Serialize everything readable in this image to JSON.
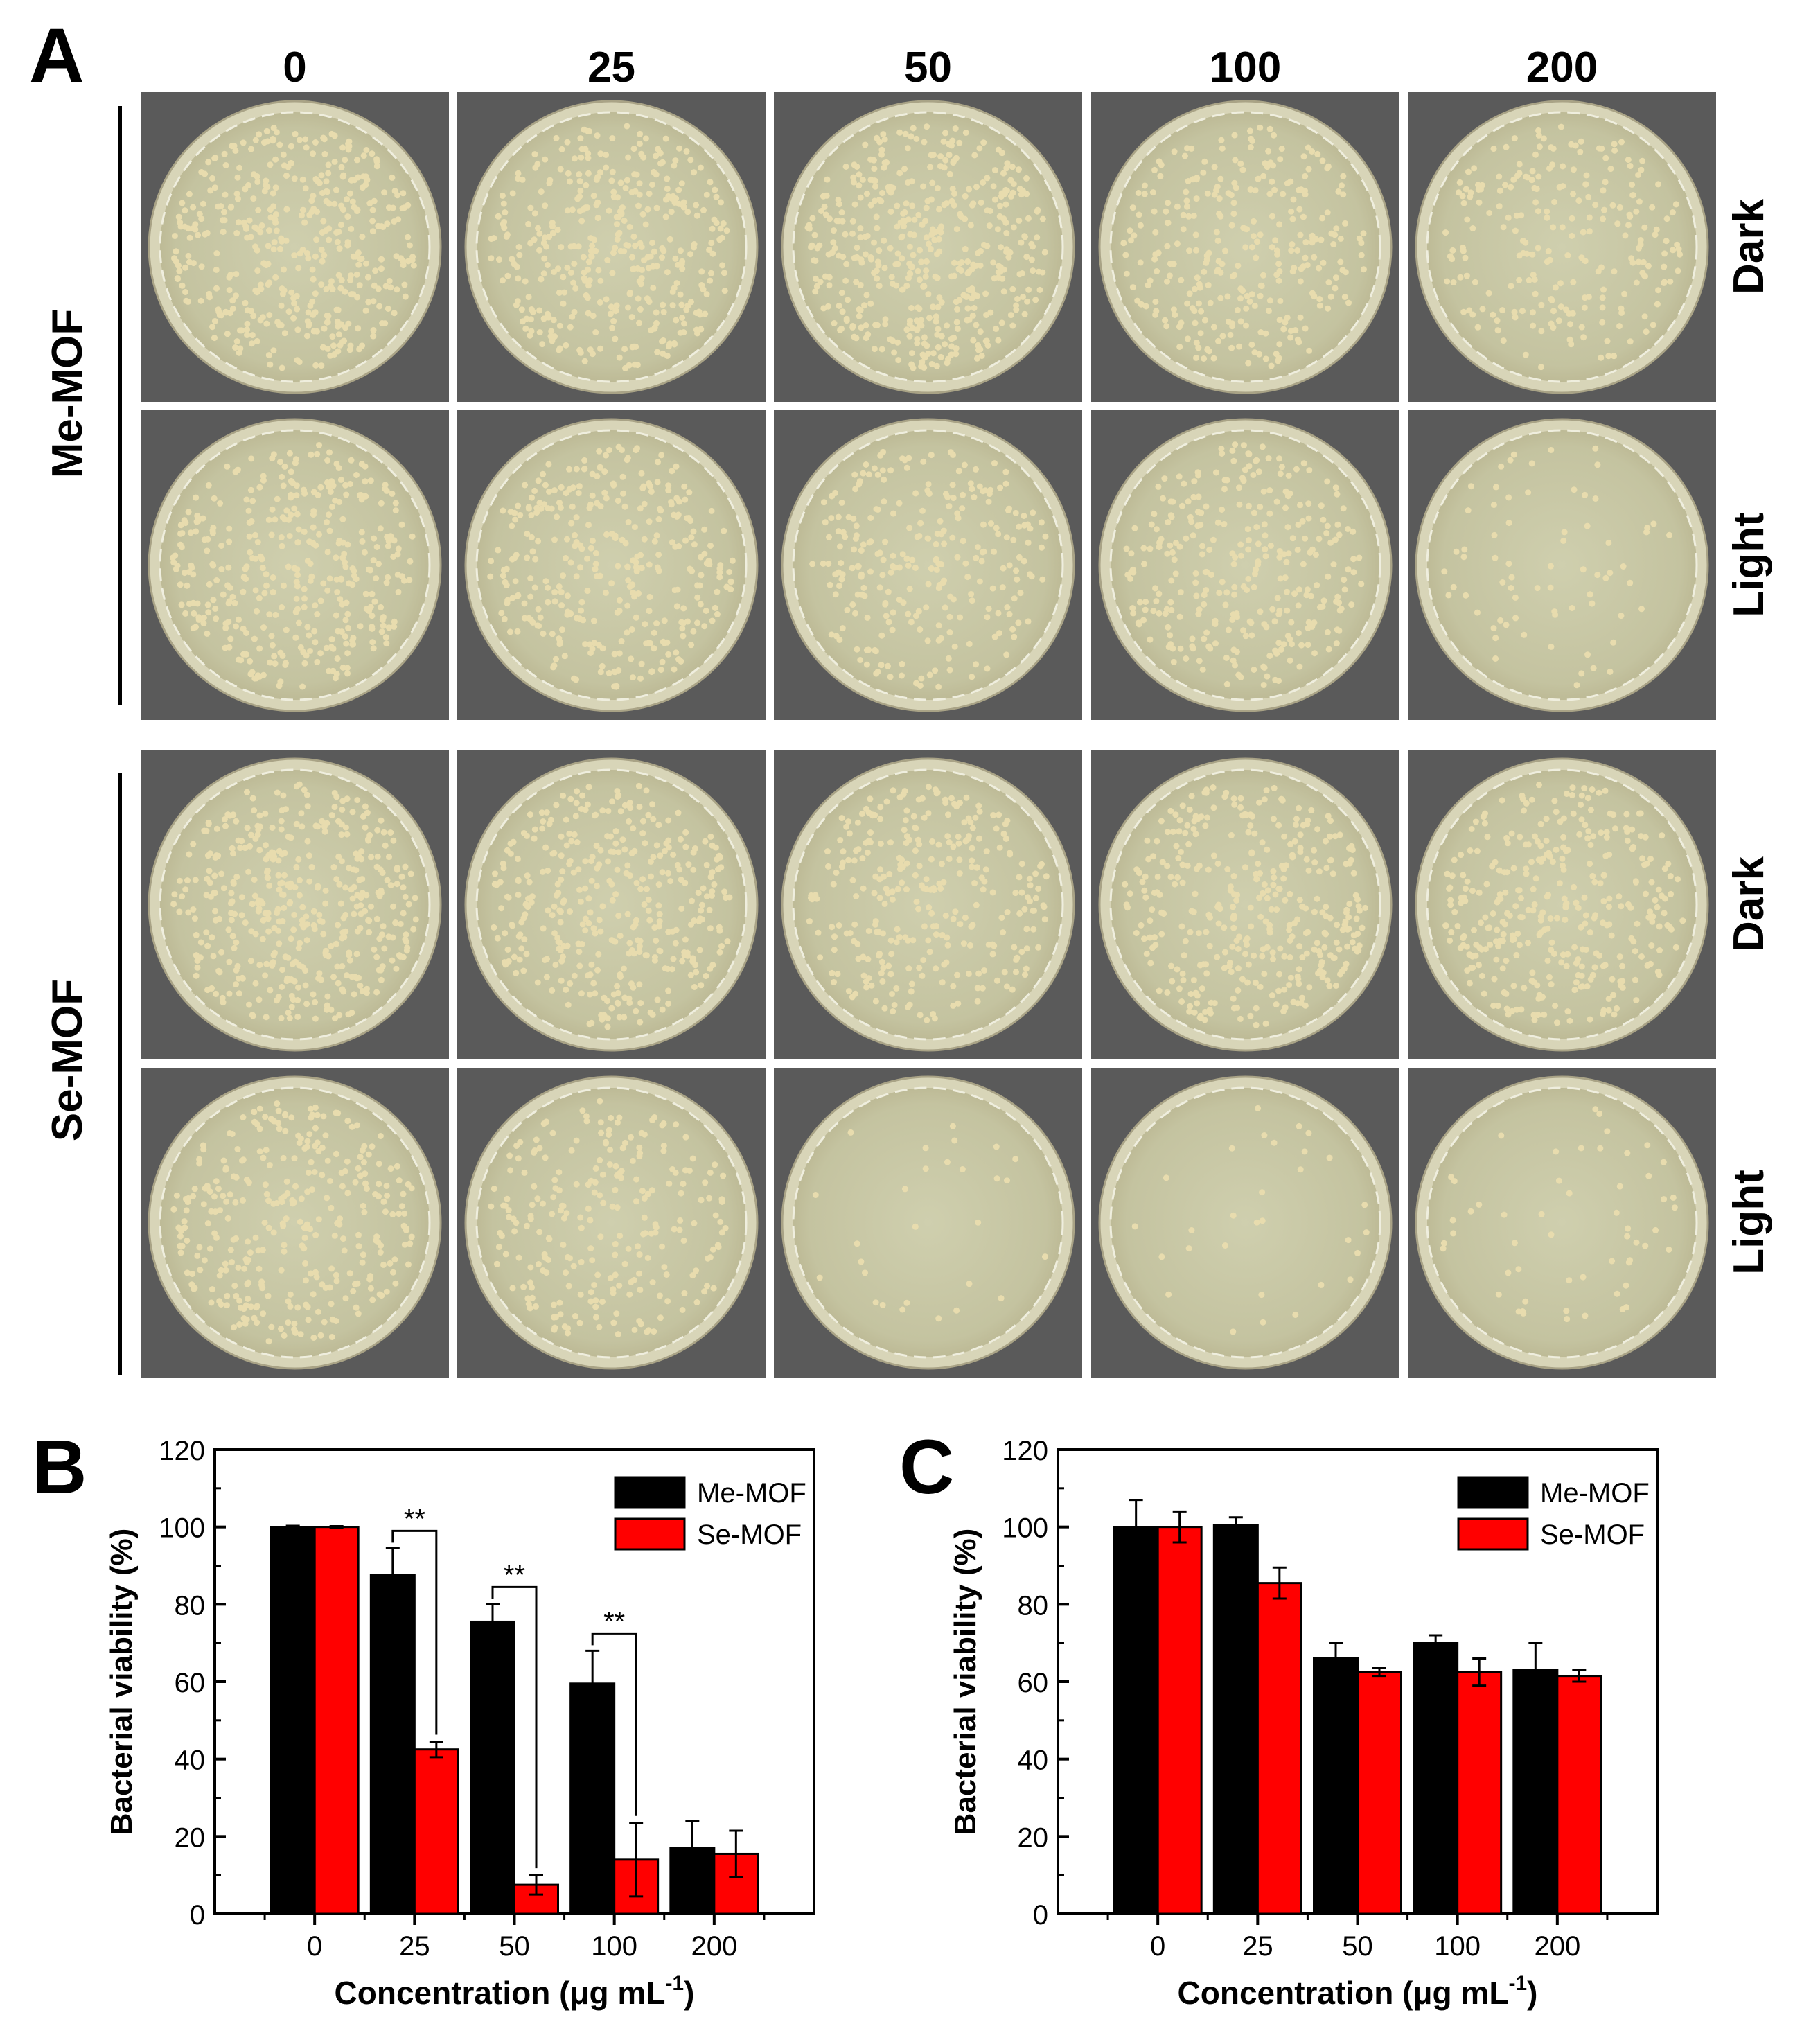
{
  "panels": {
    "a": {
      "letter": "A",
      "concentrations": [
        "0",
        "25",
        "50",
        "100",
        "200"
      ],
      "groups": [
        {
          "name": "Me-MOF",
          "rows": [
            {
              "condition": "Dark",
              "colonies": [
                420,
                380,
                460,
                300,
                230
              ]
            },
            {
              "condition": "Light",
              "colonies": [
                370,
                330,
                260,
                300,
                70
              ]
            }
          ]
        },
        {
          "name": "Se-MOF",
          "rows": [
            {
              "condition": "Dark",
              "colonies": [
                420,
                360,
                300,
                360,
                340
              ]
            },
            {
              "condition": "Light",
              "colonies": [
                320,
                240,
                28,
                30,
                55
              ]
            }
          ]
        }
      ],
      "colors": {
        "background": "#5a5a5a",
        "agar": "#c9c8a4",
        "rim": "#d8d5b8",
        "colony": "#e8dcae"
      }
    },
    "b": {
      "letter": "B"
    },
    "c": {
      "letter": "C"
    }
  },
  "chart_data": [
    {
      "type": "bar",
      "panel": "B",
      "title": "",
      "xlabel": "Concentration (μg mL",
      "xlabel_superscript": "-1",
      "xlabel_close": ")",
      "ylabel": "Bacterial viability (%)",
      "categories": [
        "0",
        "25",
        "50",
        "100",
        "200"
      ],
      "ylim": [
        0,
        120
      ],
      "yticks": [
        0,
        20,
        40,
        60,
        80,
        100,
        120
      ],
      "legend": "top-right",
      "series": [
        {
          "name": "Me-MOF",
          "color": "#000000",
          "values": [
            100,
            87.5,
            75.5,
            59.5,
            17
          ],
          "errors": [
            0.3,
            7,
            4.5,
            8.5,
            7
          ]
        },
        {
          "name": "Se-MOF",
          "color": "#ff0000",
          "values": [
            100,
            42.5,
            7.5,
            14,
            15.5
          ],
          "errors": [
            0.2,
            2,
            2.5,
            9.5,
            6
          ]
        }
      ],
      "significance": [
        {
          "category": "25",
          "label": "**"
        },
        {
          "category": "50",
          "label": "**"
        },
        {
          "category": "100",
          "label": "**"
        }
      ]
    },
    {
      "type": "bar",
      "panel": "C",
      "title": "",
      "xlabel": "Concentration (μg mL",
      "xlabel_superscript": "-1",
      "xlabel_close": ")",
      "ylabel": "Bacterial viability (%)",
      "categories": [
        "0",
        "25",
        "50",
        "100",
        "200"
      ],
      "ylim": [
        0,
        120
      ],
      "yticks": [
        0,
        20,
        40,
        60,
        80,
        100,
        120
      ],
      "legend": "top-right",
      "series": [
        {
          "name": "Me-MOF",
          "color": "#000000",
          "values": [
            100,
            100.5,
            66,
            70,
            63
          ],
          "errors": [
            7,
            2,
            4,
            2,
            7
          ]
        },
        {
          "name": "Se-MOF",
          "color": "#ff0000",
          "values": [
            100,
            85.5,
            62.5,
            62.5,
            61.5
          ],
          "errors": [
            4,
            4,
            1,
            3.5,
            1.5
          ]
        }
      ],
      "significance": []
    }
  ]
}
